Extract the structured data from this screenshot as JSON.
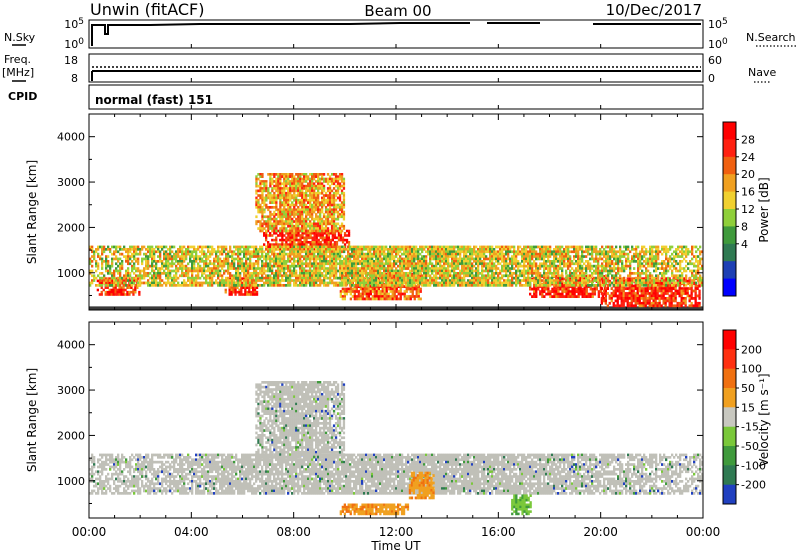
{
  "header": {
    "site": "Unwin (fitACF)",
    "beam": "Beam 00",
    "date": "10/Dec/2017"
  },
  "status_panels": {
    "nsky_label": "N.Sky",
    "nsky_ticks": [
      "10^5",
      "10^0"
    ],
    "nsearch_label": "N.Search",
    "nsearch_ticks": [
      "10^5",
      "10^0"
    ],
    "freq_label": "Freq.",
    "freq_unit": "[MHz]",
    "freq_ticks": [
      "18",
      "8"
    ],
    "nave_label": "Nave",
    "nave_ticks": [
      "60",
      "0"
    ],
    "cpid_label": "CPID",
    "cpid_value": "normal (fast) 151"
  },
  "chart_data": [
    {
      "type": "heatmap",
      "name": "Power",
      "ylabel": "Slant Range [km]",
      "ylim": [
        180,
        4500
      ],
      "yticks": [
        1000,
        2000,
        3000,
        4000
      ],
      "xlim": [
        0,
        24
      ],
      "colorbar": {
        "label": "Power [dB]",
        "ticks": [
          "28",
          "24",
          "20",
          "16",
          "12",
          "8",
          "4"
        ],
        "colors": [
          "#0000ff",
          "#1d3fb4",
          "#2f7a52",
          "#3f9a3c",
          "#8fcf3a",
          "#f0d030",
          "#f0a020",
          "#f06010",
          "#ff2010",
          "#ff0000"
        ]
      },
      "echo_regions": [
        {
          "t": [
            0,
            24
          ],
          "r": [
            180,
            260
          ],
          "level": "line",
          "note": "ground line"
        },
        {
          "t": [
            0.3,
            2.0
          ],
          "r": [
            500,
            900
          ],
          "level": 4,
          "note": ""
        },
        {
          "t": [
            5.3,
            6.6
          ],
          "r": [
            500,
            900
          ],
          "level": 4,
          "note": ""
        },
        {
          "t": [
            6.8,
            10.2
          ],
          "r": [
            1500,
            1950
          ],
          "level": 4,
          "note": ""
        },
        {
          "t": [
            9.8,
            13.0
          ],
          "r": [
            400,
            1000
          ],
          "level": 3,
          "note": ""
        },
        {
          "t": [
            17.2,
            20.2
          ],
          "r": [
            450,
            950
          ],
          "level": 4,
          "note": ""
        },
        {
          "t": [
            20.0,
            23.9
          ],
          "r": [
            250,
            900
          ],
          "level": 4,
          "note": ""
        },
        {
          "t": [
            6.5,
            10.0
          ],
          "r": [
            1900,
            3200
          ],
          "level": 2,
          "note": ""
        },
        {
          "t": [
            0,
            24
          ],
          "r": [
            700,
            1600
          ],
          "level": 1,
          "note": ""
        }
      ]
    },
    {
      "type": "heatmap",
      "name": "Velocity",
      "ylabel": "Slant Range [km]",
      "xlabel": "Time UT",
      "ylim": [
        180,
        4500
      ],
      "yticks": [
        1000,
        2000,
        3000,
        4000
      ],
      "xlim": [
        0,
        24
      ],
      "xticks": [
        "00:00",
        "04:00",
        "08:00",
        "12:00",
        "16:00",
        "20:00",
        "00:00"
      ],
      "colorbar": {
        "label": "Velocity [m s⁻¹]",
        "ticks": [
          "200",
          "100",
          "50",
          "15",
          "-15",
          "-50",
          "-100",
          "-200"
        ],
        "colors": [
          "#2040c0",
          "#2f7a52",
          "#3f9a3c",
          "#7ac83a",
          "#c8c8c0",
          "#f0a020",
          "#f07010",
          "#ff3010",
          "#ff0000"
        ]
      },
      "echo_regions": [
        {
          "t": [
            0,
            24
          ],
          "r": [
            700,
            1600
          ],
          "level": "ground-scatter",
          "note": ""
        },
        {
          "t": [
            6.5,
            10.0
          ],
          "r": [
            1500,
            3200
          ],
          "level": "ground-scatter",
          "note": ""
        },
        {
          "t": [
            9.8,
            12.5
          ],
          "r": [
            250,
            500
          ],
          "level": "-50",
          "note": ""
        },
        {
          "t": [
            12.5,
            13.5
          ],
          "r": [
            600,
            1200
          ],
          "level": "-50",
          "note": ""
        },
        {
          "t": [
            16.5,
            17.3
          ],
          "r": [
            250,
            700
          ],
          "level": "15",
          "note": ""
        }
      ]
    }
  ]
}
